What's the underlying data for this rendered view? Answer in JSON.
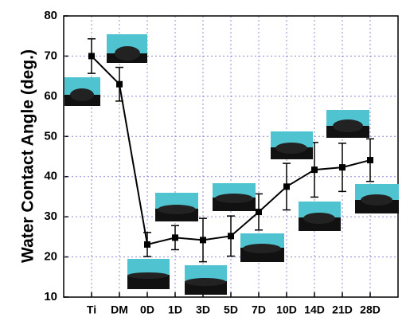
{
  "chart_data": {
    "type": "line",
    "y_label": "Water Contact Angle (deg.)",
    "categories": [
      "Ti",
      "DM",
      "0D",
      "1D",
      "3D",
      "5D",
      "7D",
      "10D",
      "14D",
      "21D",
      "28D"
    ],
    "series": [
      {
        "color": "#000000",
        "values": [
          70,
          63,
          23.1,
          24.8,
          24.2,
          25.2,
          31.2,
          37.5,
          41.7,
          42.3,
          44.1
        ],
        "errors": [
          4.3,
          4.2,
          3,
          3,
          5.4,
          5,
          4.5,
          5.8,
          6.8,
          6,
          5.3
        ]
      }
    ],
    "ylim": [
      10,
      80
    ],
    "yticks": [
      10,
      20,
      30,
      40,
      50,
      60,
      70,
      80
    ],
    "grid": true
  }
}
